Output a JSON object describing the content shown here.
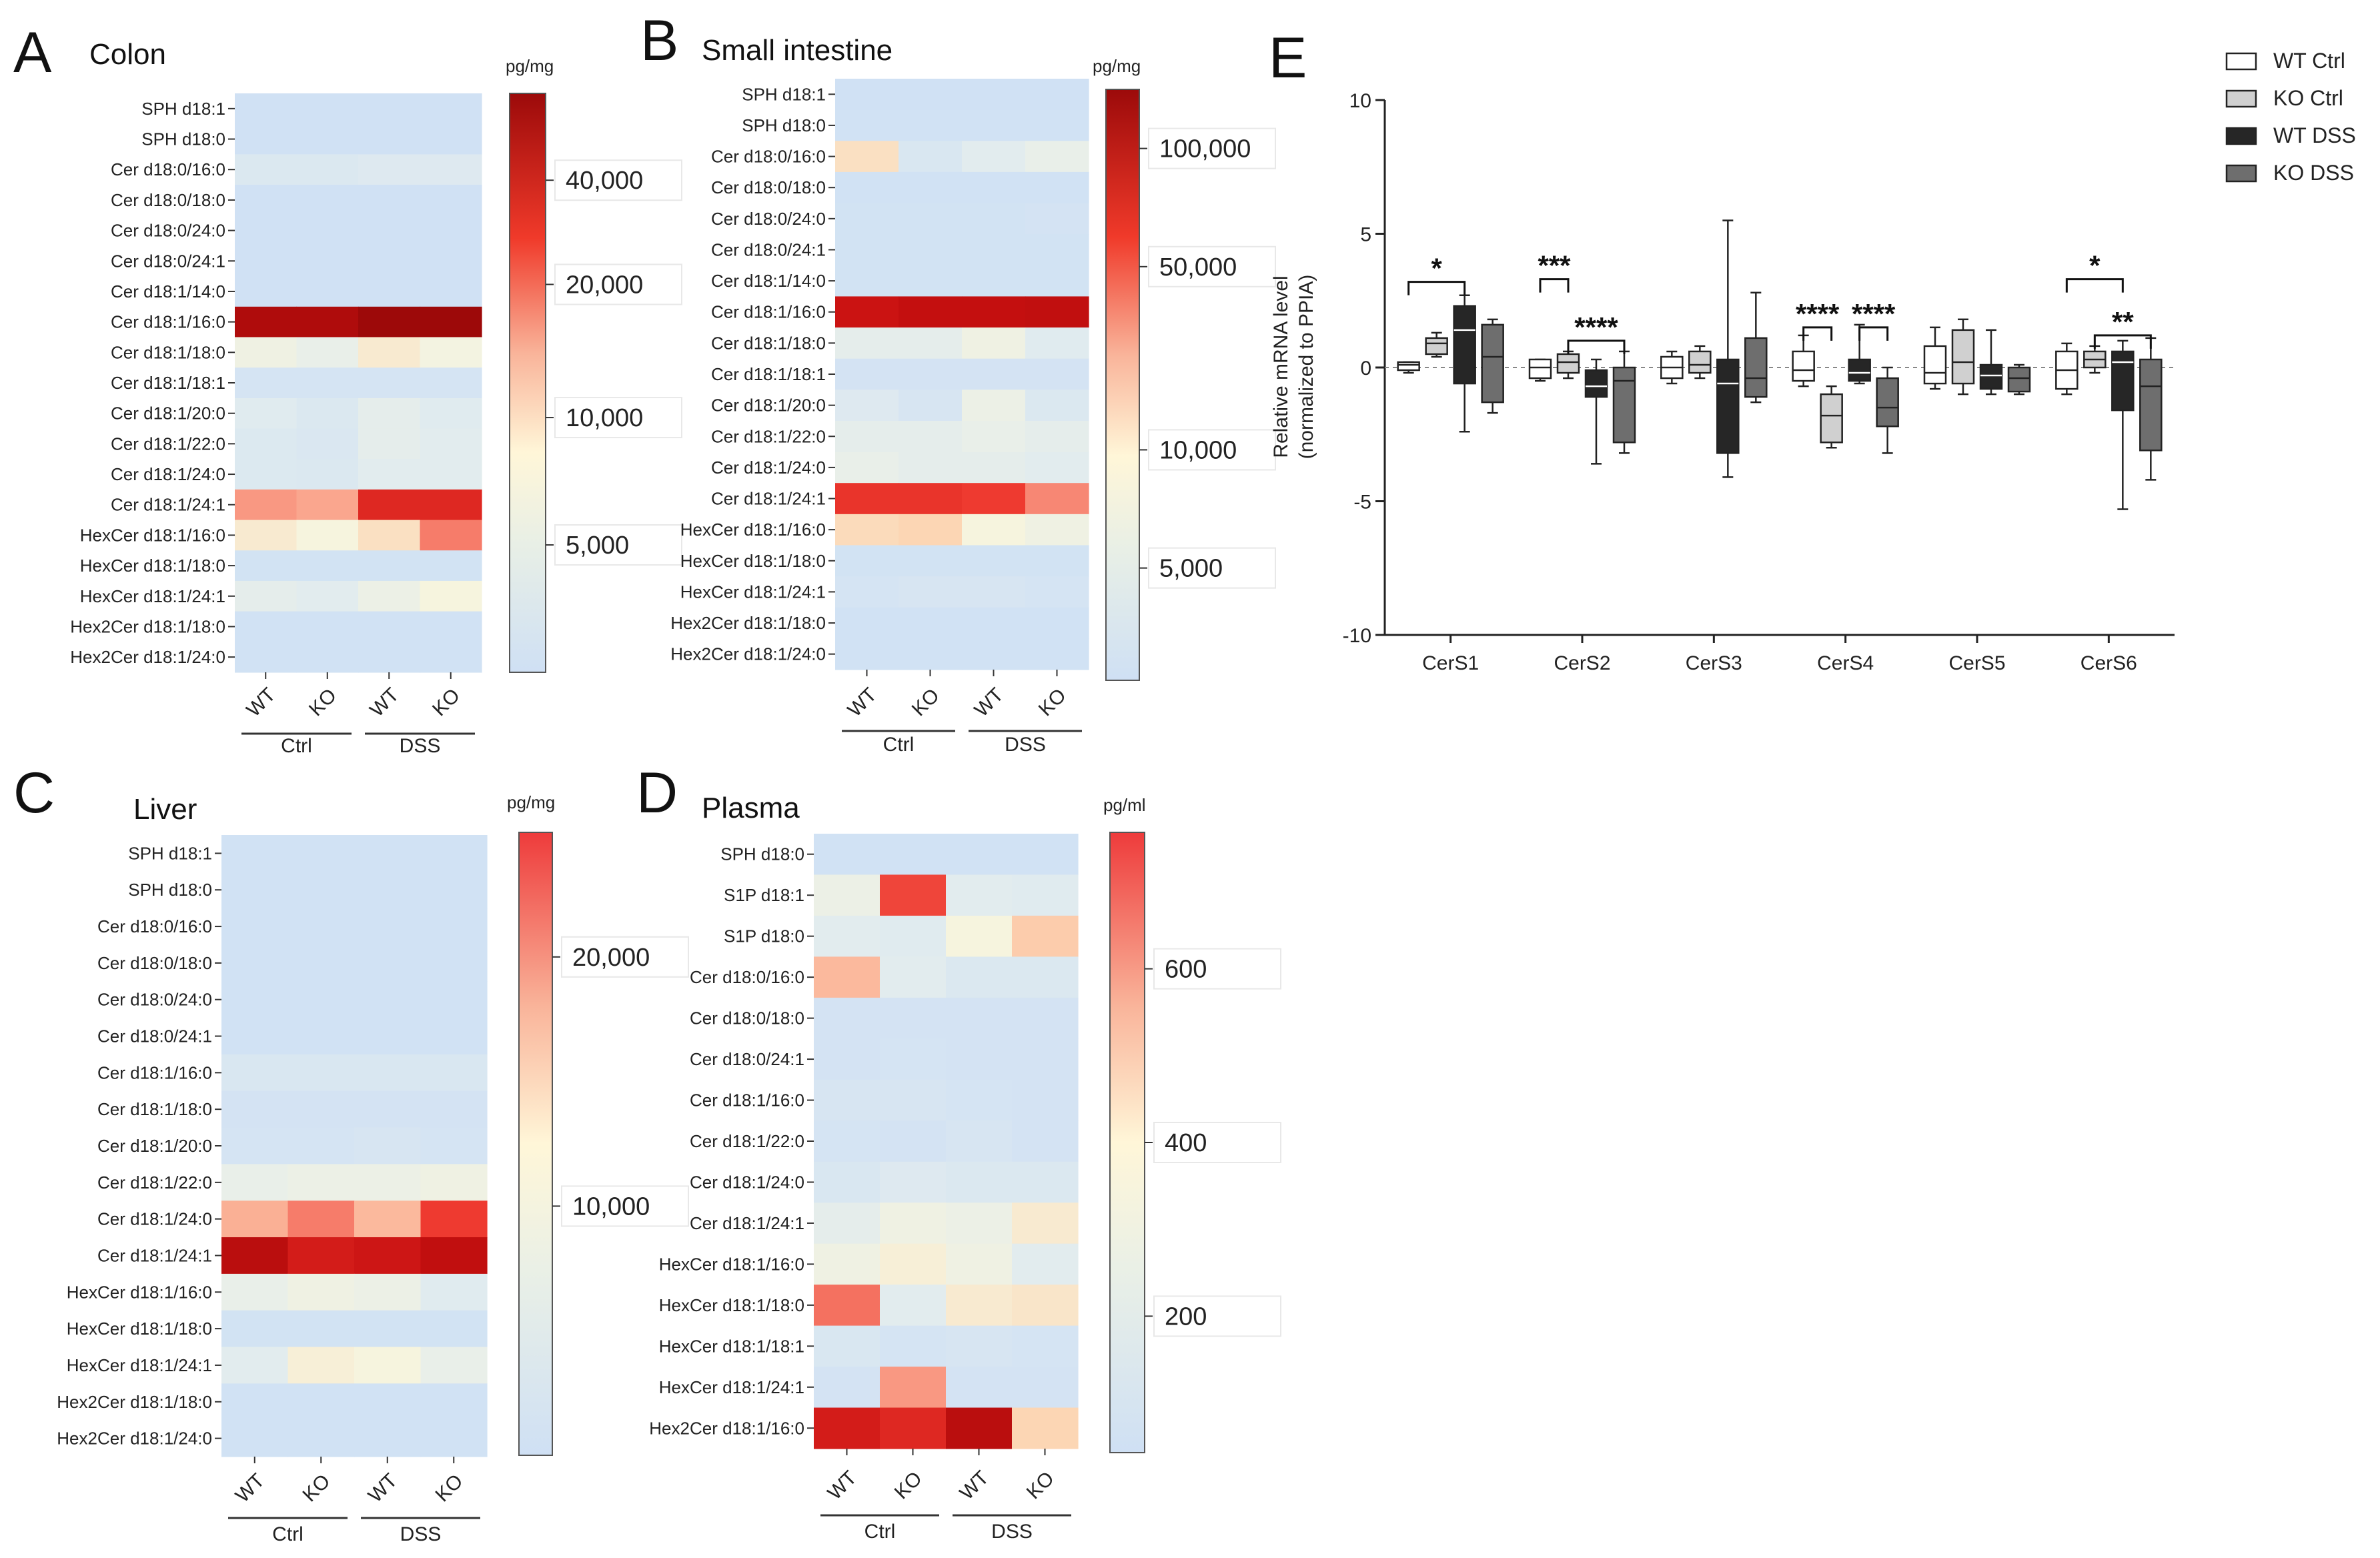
{
  "chart_data": [
    {
      "type": "heatmap",
      "panel": "A",
      "title": "Colon",
      "unit": "pg/mg",
      "colorbar_ticks": [
        "40,000",
        "20,000",
        "10,000",
        "5,000"
      ],
      "colorbar_tick_values": [
        40000,
        20000,
        10000,
        5000
      ],
      "columns": [
        "WT",
        "KO",
        "WT",
        "KO"
      ],
      "groups": [
        "Ctrl",
        "DSS"
      ],
      "rows": [
        "SPH d18:1",
        "SPH d18:0",
        "Cer d18:0/16:0",
        "Cer d18:0/18:0",
        "Cer d18:0/24:0",
        "Cer d18:0/24:1",
        "Cer d18:1/14:0",
        "Cer d18:1/16:0",
        "Cer d18:1/18:0",
        "Cer d18:1/18:1",
        "Cer d18:1/20:0",
        "Cer d18:1/22:0",
        "Cer d18:1/24:0",
        "Cer d18:1/24:1",
        "HexCer d18:1/16:0",
        "HexCer d18:1/18:0",
        "HexCer d18:1/24:1",
        "Hex2Cer d18:1/18:0",
        "Hex2Cer d18:1/24:0"
      ],
      "values": [
        [
          0.02,
          0.02,
          0.02,
          0.02
        ],
        [
          0.02,
          0.02,
          0.02,
          0.02
        ],
        [
          0.12,
          0.12,
          0.14,
          0.14
        ],
        [
          0.02,
          0.02,
          0.02,
          0.02
        ],
        [
          0.02,
          0.02,
          0.02,
          0.02
        ],
        [
          0.02,
          0.02,
          0.02,
          0.02
        ],
        [
          0.02,
          0.02,
          0.02,
          0.02
        ],
        [
          0.93,
          0.93,
          0.98,
          0.98
        ],
        [
          0.26,
          0.22,
          0.34,
          0.28
        ],
        [
          0.06,
          0.06,
          0.06,
          0.06
        ],
        [
          0.16,
          0.12,
          0.2,
          0.16
        ],
        [
          0.13,
          0.11,
          0.2,
          0.18
        ],
        [
          0.13,
          0.12,
          0.18,
          0.18
        ],
        [
          0.55,
          0.52,
          0.78,
          0.78
        ],
        [
          0.34,
          0.3,
          0.38,
          0.6
        ],
        [
          0.04,
          0.04,
          0.04,
          0.04
        ],
        [
          0.2,
          0.18,
          0.24,
          0.3
        ],
        [
          0.03,
          0.03,
          0.03,
          0.03
        ],
        [
          0.03,
          0.03,
          0.03,
          0.03
        ]
      ]
    },
    {
      "type": "heatmap",
      "panel": "B",
      "title": "Small intestine",
      "unit": "pg/mg",
      "colorbar_ticks": [
        "100,000",
        "50,000",
        "10,000",
        "5,000"
      ],
      "colorbar_tick_values": [
        100000,
        50000,
        10000,
        5000
      ],
      "columns": [
        "WT",
        "KO",
        "WT",
        "KO"
      ],
      "groups": [
        "Ctrl",
        "DSS"
      ],
      "rows": [
        "SPH d18:1",
        "SPH d18:0",
        "Cer d18:0/16:0",
        "Cer d18:0/18:0",
        "Cer d18:0/24:0",
        "Cer d18:0/24:1",
        "Cer d18:1/14:0",
        "Cer d18:1/16:0",
        "Cer d18:1/18:0",
        "Cer d18:1/18:1",
        "Cer d18:1/20:0",
        "Cer d18:1/22:0",
        "Cer d18:1/24:0",
        "Cer d18:1/24:1",
        "HexCer d18:1/16:0",
        "HexCer d18:1/18:0",
        "HexCer d18:1/24:1",
        "Hex2Cer d18:1/18:0",
        "Hex2Cer d18:1/24:0"
      ],
      "values": [
        [
          0.02,
          0.02,
          0.02,
          0.02
        ],
        [
          0.03,
          0.03,
          0.03,
          0.03
        ],
        [
          0.38,
          0.1,
          0.18,
          0.22
        ],
        [
          0.03,
          0.03,
          0.03,
          0.03
        ],
        [
          0.04,
          0.04,
          0.04,
          0.05
        ],
        [
          0.04,
          0.04,
          0.04,
          0.04
        ],
        [
          0.04,
          0.04,
          0.04,
          0.04
        ],
        [
          0.85,
          0.87,
          0.87,
          0.88
        ],
        [
          0.2,
          0.2,
          0.26,
          0.16
        ],
        [
          0.05,
          0.05,
          0.05,
          0.05
        ],
        [
          0.14,
          0.08,
          0.24,
          0.12
        ],
        [
          0.2,
          0.2,
          0.22,
          0.2
        ],
        [
          0.22,
          0.2,
          0.2,
          0.18
        ],
        [
          0.74,
          0.74,
          0.72,
          0.58
        ],
        [
          0.4,
          0.42,
          0.3,
          0.26
        ],
        [
          0.04,
          0.04,
          0.04,
          0.04
        ],
        [
          0.06,
          0.08,
          0.08,
          0.06
        ],
        [
          0.03,
          0.03,
          0.03,
          0.03
        ],
        [
          0.03,
          0.03,
          0.03,
          0.03
        ]
      ]
    },
    {
      "type": "heatmap",
      "panel": "C",
      "title": "Liver",
      "unit": "pg/mg",
      "colorbar_ticks": [
        "20,000",
        "10,000"
      ],
      "colorbar_tick_values": [
        20000,
        10000
      ],
      "columns": [
        "WT",
        "KO",
        "WT",
        "KO"
      ],
      "groups": [
        "Ctrl",
        "DSS"
      ],
      "rows": [
        "SPH d18:1",
        "SPH d18:0",
        "Cer d18:0/16:0",
        "Cer d18:0/18:0",
        "Cer d18:0/24:0",
        "Cer d18:0/24:1",
        "Cer d18:1/16:0",
        "Cer d18:1/18:0",
        "Cer d18:1/20:0",
        "Cer d18:1/22:0",
        "Cer d18:1/24:0",
        "Cer d18:1/24:1",
        "HexCer d18:1/16:0",
        "HexCer d18:1/18:0",
        "HexCer d18:1/24:1",
        "Hex2Cer d18:1/18:0",
        "Hex2Cer d18:1/24:0"
      ],
      "values": [
        [
          0.03,
          0.03,
          0.03,
          0.03
        ],
        [
          0.03,
          0.03,
          0.03,
          0.03
        ],
        [
          0.03,
          0.03,
          0.03,
          0.03
        ],
        [
          0.03,
          0.03,
          0.03,
          0.03
        ],
        [
          0.03,
          0.03,
          0.03,
          0.03
        ],
        [
          0.03,
          0.03,
          0.03,
          0.03
        ],
        [
          0.1,
          0.1,
          0.1,
          0.1
        ],
        [
          0.05,
          0.05,
          0.05,
          0.05
        ],
        [
          0.06,
          0.06,
          0.08,
          0.06
        ],
        [
          0.22,
          0.24,
          0.24,
          0.26
        ],
        [
          0.5,
          0.6,
          0.48,
          0.72
        ],
        [
          0.9,
          0.82,
          0.84,
          0.88
        ],
        [
          0.22,
          0.26,
          0.24,
          0.16
        ],
        [
          0.04,
          0.04,
          0.04,
          0.04
        ],
        [
          0.18,
          0.32,
          0.3,
          0.22
        ],
        [
          0.03,
          0.03,
          0.03,
          0.03
        ],
        [
          0.03,
          0.03,
          0.03,
          0.03
        ]
      ]
    },
    {
      "type": "heatmap",
      "panel": "D",
      "title": "Plasma",
      "unit": "pg/ml",
      "colorbar_ticks": [
        "600",
        "400",
        "200"
      ],
      "colorbar_tick_values": [
        600,
        400,
        200
      ],
      "columns": [
        "WT",
        "KO",
        "WT",
        "KO"
      ],
      "groups": [
        "Ctrl",
        "DSS"
      ],
      "rows": [
        "SPH d18:0",
        "S1P d18:1",
        "S1P d18:0",
        "Cer d18:0/16:0",
        "Cer d18:0/18:0",
        "Cer d18:0/24:1",
        "Cer d18:1/16:0",
        "Cer d18:1/22:0",
        "Cer d18:1/24:0",
        "Cer d18:1/24:1",
        "HexCer d18:1/16:0",
        "HexCer d18:1/18:0",
        "HexCer d18:1/18:1",
        "HexCer d18:1/24:1",
        "Hex2Cer d18:1/16:0"
      ],
      "values": [
        [
          0.03,
          0.03,
          0.03,
          0.03
        ],
        [
          0.24,
          0.7,
          0.18,
          0.16
        ],
        [
          0.18,
          0.16,
          0.3,
          0.44
        ],
        [
          0.48,
          0.18,
          0.12,
          0.12
        ],
        [
          0.05,
          0.05,
          0.05,
          0.05
        ],
        [
          0.05,
          0.06,
          0.05,
          0.05
        ],
        [
          0.08,
          0.08,
          0.06,
          0.05
        ],
        [
          0.06,
          0.05,
          0.08,
          0.05
        ],
        [
          0.1,
          0.14,
          0.12,
          0.12
        ],
        [
          0.2,
          0.26,
          0.24,
          0.34
        ],
        [
          0.26,
          0.32,
          0.26,
          0.18
        ],
        [
          0.62,
          0.18,
          0.34,
          0.36
        ],
        [
          0.1,
          0.06,
          0.08,
          0.06
        ],
        [
          0.05,
          0.55,
          0.05,
          0.05
        ],
        [
          0.82,
          0.78,
          0.9,
          0.42
        ]
      ]
    },
    {
      "type": "box",
      "panel": "E",
      "ylabel": "Relative mRNA level (normalized to PPIA)",
      "ylabel_lines": [
        "Relative mRNA level",
        "(normalized to PPIA)"
      ],
      "ylim": [
        -10,
        10
      ],
      "yticks": [
        10,
        5,
        0,
        -5,
        -10
      ],
      "categories": [
        "CerS1",
        "CerS2",
        "CerS3",
        "CerS4",
        "CerS5",
        "CerS6"
      ],
      "series": [
        {
          "name": "WT Ctrl",
          "color": "#ffffff",
          "boxes": [
            [
              -0.2,
              -0.1,
              0.1,
              0.2,
              0.2
            ],
            [
              -0.5,
              -0.4,
              0.0,
              0.3,
              0.3
            ],
            [
              -0.6,
              -0.4,
              0.0,
              0.4,
              0.6
            ],
            [
              -0.7,
              -0.5,
              -0.1,
              0.6,
              1.2
            ],
            [
              -0.8,
              -0.6,
              -0.2,
              0.8,
              1.5
            ],
            [
              -1.0,
              -0.8,
              -0.1,
              0.6,
              0.9
            ]
          ]
        },
        {
          "name": "KO Ctrl",
          "color": "#d0d0d0",
          "boxes": [
            [
              0.4,
              0.5,
              0.9,
              1.1,
              1.3
            ],
            [
              -0.4,
              -0.2,
              0.2,
              0.5,
              0.6
            ],
            [
              -0.4,
              -0.2,
              0.1,
              0.6,
              0.8
            ],
            [
              -3.0,
              -2.8,
              -1.8,
              -1.0,
              -0.7
            ],
            [
              -1.0,
              -0.6,
              0.2,
              1.4,
              1.8
            ],
            [
              -0.2,
              0.0,
              0.3,
              0.6,
              0.8
            ]
          ]
        },
        {
          "name": "WT DSS",
          "color": "#262626",
          "boxes": [
            [
              -2.4,
              -0.6,
              1.4,
              2.3,
              2.7
            ],
            [
              -3.6,
              -1.1,
              -0.7,
              -0.1,
              0.3
            ],
            [
              -4.1,
              -3.2,
              -0.6,
              0.3,
              5.5
            ],
            [
              -0.6,
              -0.5,
              -0.2,
              0.3,
              1.6
            ],
            [
              -1.0,
              -0.8,
              -0.3,
              0.1,
              1.4
            ],
            [
              -5.3,
              -1.6,
              0.2,
              0.6,
              1.0
            ]
          ]
        },
        {
          "name": "KO DSS",
          "color": "#6e6e6e",
          "boxes": [
            [
              -1.7,
              -1.3,
              0.4,
              1.6,
              1.8
            ],
            [
              -3.2,
              -2.8,
              -0.5,
              0.0,
              0.6
            ],
            [
              -1.3,
              -1.1,
              -0.4,
              1.1,
              2.8
            ],
            [
              -3.2,
              -2.2,
              -1.5,
              -0.4,
              0.0
            ],
            [
              -1.0,
              -0.9,
              -0.4,
              0.0,
              0.1
            ],
            [
              -4.2,
              -3.1,
              -0.7,
              0.3,
              1.1
            ]
          ]
        }
      ],
      "significance": [
        {
          "label": "*",
          "category": 0,
          "from": 0,
          "to": 2
        },
        {
          "label": "***",
          "category": 1,
          "from": 0,
          "to": 1
        },
        {
          "label": "****",
          "category": 1,
          "from": 1,
          "to": 3
        },
        {
          "label": "****",
          "category": 3,
          "from": 0,
          "to": 1
        },
        {
          "label": "****",
          "category": 3,
          "from": 2,
          "to": 3
        },
        {
          "label": "*",
          "category": 5,
          "from": 0,
          "to": 2
        },
        {
          "label": "**",
          "category": 5,
          "from": 1,
          "to": 3
        }
      ]
    }
  ],
  "panel_letters": [
    "A",
    "B",
    "C",
    "D",
    "E"
  ]
}
